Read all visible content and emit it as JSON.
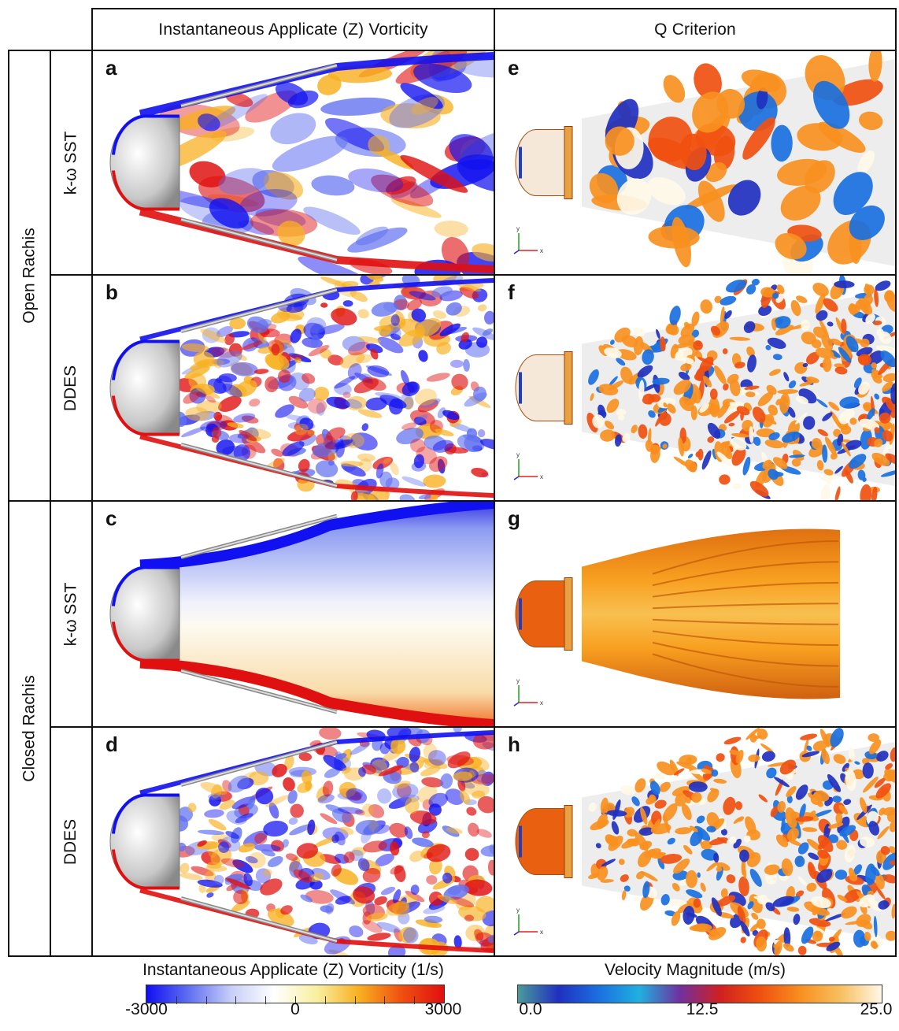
{
  "column_headers": [
    "Instantaneous Applicate (Z) Vorticity",
    "Q Criterion"
  ],
  "group_labels": [
    "Open Rachis",
    "Closed Rachis"
  ],
  "row_labels": [
    "k-ω SST",
    "DDES",
    "k-ω SST",
    "DDES"
  ],
  "panels": {
    "vorticity": [
      {
        "label": "a",
        "regime": "unsteady-shedding"
      },
      {
        "label": "b",
        "regime": "turbulent-fine"
      },
      {
        "label": "c",
        "regime": "steady-smooth"
      },
      {
        "label": "d",
        "regime": "turbulent-fine"
      }
    ],
    "qcrit": [
      {
        "label": "e",
        "regime": "large-vortex-rings"
      },
      {
        "label": "f",
        "regime": "fine-vortices"
      },
      {
        "label": "g",
        "regime": "smooth-envelope"
      },
      {
        "label": "h",
        "regime": "fine-vortices"
      }
    ]
  },
  "colorbars": {
    "vorticity": {
      "title": "Instantaneous Applicate (Z) Vorticity (1/s)",
      "ticks": [
        "-3000",
        "0",
        "3000"
      ],
      "range": [
        -3000,
        3000
      ],
      "colors": [
        "#1010f0",
        "#6070f0",
        "#c8cff8",
        "#ffffff",
        "#f8f0a0",
        "#f8b020",
        "#f05010",
        "#e01010"
      ]
    },
    "velocity": {
      "title": "Velocity Magnitude (m/s)",
      "ticks": [
        "0.0",
        "12.5",
        "25.0"
      ],
      "range": [
        0.0,
        25.0
      ],
      "colors": [
        "#4a9a9a",
        "#2030c0",
        "#1a70e0",
        "#20b0e0",
        "#7030a0",
        "#d02020",
        "#f05010",
        "#f89020",
        "#f8c060",
        "#fff8e8"
      ]
    }
  },
  "axis_triad": {
    "y": "y",
    "x": "x"
  }
}
